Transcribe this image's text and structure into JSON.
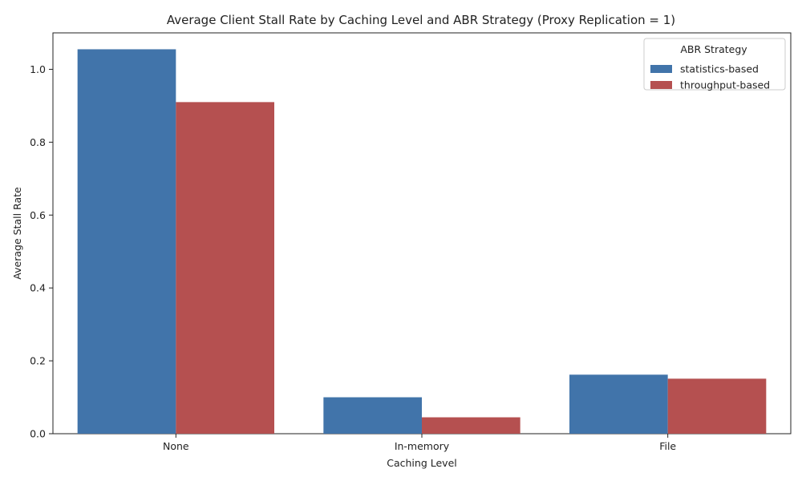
{
  "chart_data": {
    "type": "bar",
    "title": "Average Client Stall Rate by Caching Level and ABR Strategy (Proxy Replication = 1)",
    "xlabel": "Caching Level",
    "ylabel": "Average Stall Rate",
    "categories": [
      "None",
      "In-memory",
      "File"
    ],
    "series": [
      {
        "name": "statistics-based",
        "values": [
          1.055,
          0.1,
          0.162
        ],
        "color": "#4174aa"
      },
      {
        "name": "throughput-based",
        "values": [
          0.91,
          0.045,
          0.151
        ],
        "color": "#b55050"
      }
    ],
    "ylim": [
      0,
      1.1
    ],
    "yticks": [
      "0.0",
      "0.2",
      "0.4",
      "0.6",
      "0.8",
      "1.0"
    ],
    "grid": false,
    "legend": {
      "title": "ABR Strategy",
      "placement": "top-right"
    }
  }
}
